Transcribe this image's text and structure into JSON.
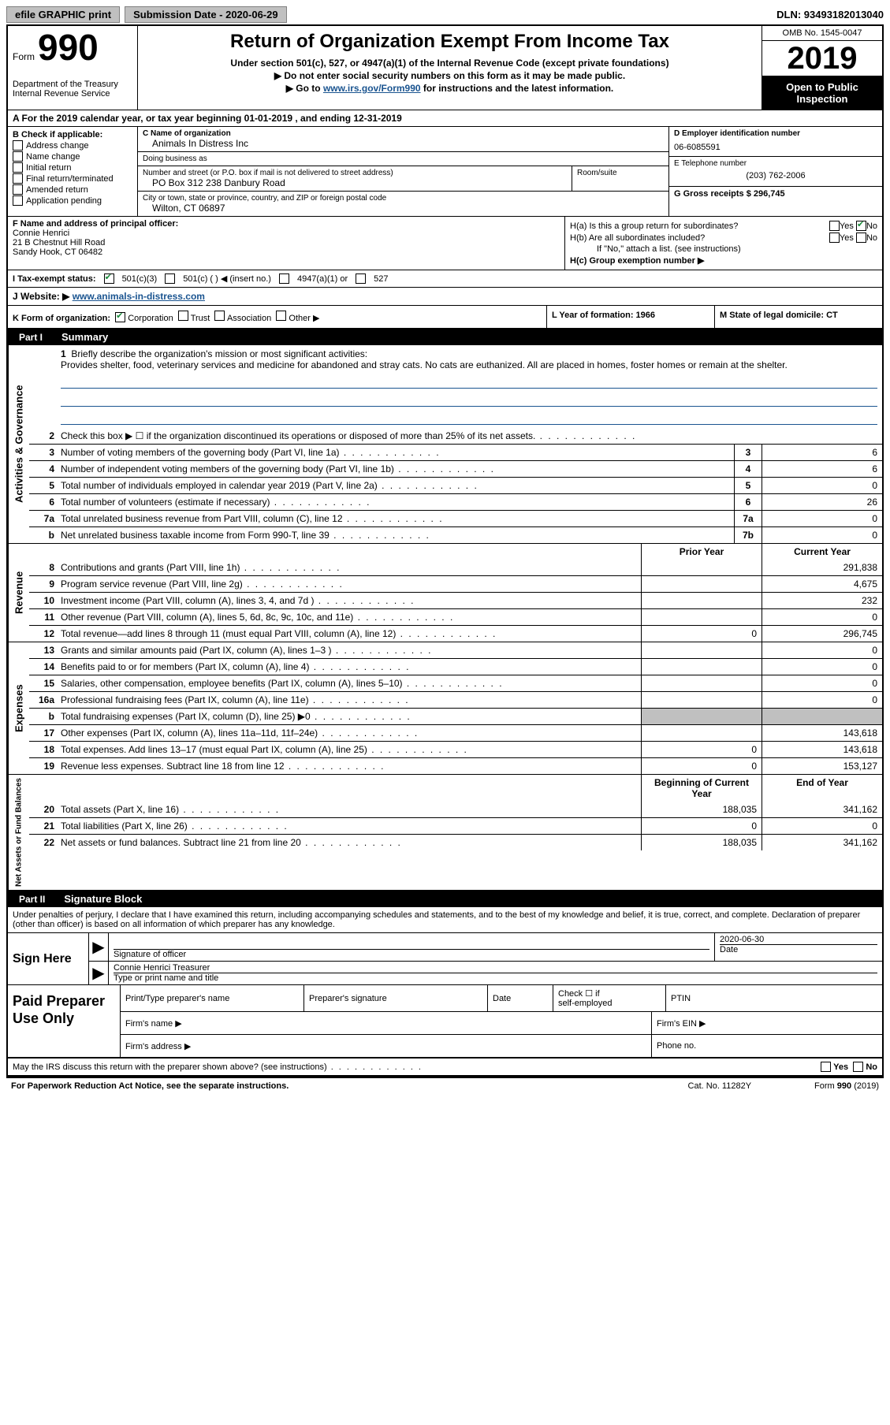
{
  "topbar": {
    "efile": "efile GRAPHIC print",
    "sub_label": "Submission Date - 2020-06-29",
    "dln": "DLN: 93493182013040"
  },
  "header": {
    "form_word": "Form",
    "form_num": "990",
    "dept": "Department of the Treasury\nInternal Revenue Service",
    "title": "Return of Organization Exempt From Income Tax",
    "sub1": "Under section 501(c), 527, or 4947(a)(1) of the Internal Revenue Code (except private foundations)",
    "sub2": "▶ Do not enter social security numbers on this form as it may be made public.",
    "sub3_pre": "▶ Go to ",
    "sub3_link": "www.irs.gov/Form990",
    "sub3_post": " for instructions and the latest information.",
    "omb": "OMB No. 1545-0047",
    "year": "2019",
    "inspection": "Open to Public Inspection"
  },
  "rowA": "A   For the 2019 calendar year, or tax year beginning 01-01-2019    , and ending 12-31-2019",
  "colB": {
    "label": "B Check if applicable:",
    "items": [
      "Address change",
      "Name change",
      "Initial return",
      "Final return/terminated",
      "Amended return",
      "Application pending"
    ]
  },
  "colC": {
    "name_lbl": "C Name of organization",
    "name": "Animals In Distress Inc",
    "dba_lbl": "Doing business as",
    "dba": "",
    "addr_lbl": "Number and street (or P.O. box if mail is not delivered to street address)",
    "room_lbl": "Room/suite",
    "addr": "PO Box 312 238 Danbury Road",
    "city_lbl": "City or town, state or province, country, and ZIP or foreign postal code",
    "city": "Wilton, CT  06897"
  },
  "colD": {
    "ein_lbl": "D Employer identification number",
    "ein": "06-6085591",
    "phone_lbl": "E Telephone number",
    "phone": "(203) 762-2006",
    "gross_lbl": "G Gross receipts $ 296,745"
  },
  "colF": {
    "lbl": "F  Name and address of principal officer:",
    "name": "Connie Henrici",
    "addr1": "21 B Chestnut Hill Road",
    "addr2": "Sandy Hook, CT  06482"
  },
  "colH": {
    "a": "H(a)  Is this a group return for subordinates?",
    "b": "H(b)  Are all subordinates included?",
    "b_note": "If \"No,\" attach a list. (see instructions)",
    "c": "H(c)  Group exemption number ▶"
  },
  "rowI": {
    "lbl": "I   Tax-exempt status:",
    "o1": "501(c)(3)",
    "o2": "501(c) (   ) ◀ (insert no.)",
    "o3": "4947(a)(1) or",
    "o4": "527"
  },
  "rowJ": {
    "lbl": "J   Website: ▶  ",
    "url": "www.animals-in-distress.com"
  },
  "rowK": "K Form of organization:",
  "rowK_opts": [
    "Corporation",
    "Trust",
    "Association",
    "Other ▶"
  ],
  "rowL": "L Year of formation: 1966",
  "rowM": "M State of legal domicile: CT",
  "part1": {
    "tab": "Part I",
    "title": "Summary"
  },
  "mission": {
    "num": "1",
    "lbl": "Briefly describe the organization's mission or most significant activities:",
    "text": "Provides shelter, food, veterinary services and medicine for abandoned and stray cats. No cats are euthanized. All are placed in homes, foster homes or remain at the shelter."
  },
  "gov_lines": [
    {
      "n": "2",
      "d": "Check this box ▶ ☐  if the organization discontinued its operations or disposed of more than 25% of its net assets.",
      "box": "",
      "v": ""
    },
    {
      "n": "3",
      "d": "Number of voting members of the governing body (Part VI, line 1a)",
      "box": "3",
      "v": "6"
    },
    {
      "n": "4",
      "d": "Number of independent voting members of the governing body (Part VI, line 1b)",
      "box": "4",
      "v": "6"
    },
    {
      "n": "5",
      "d": "Total number of individuals employed in calendar year 2019 (Part V, line 2a)",
      "box": "5",
      "v": "0"
    },
    {
      "n": "6",
      "d": "Total number of volunteers (estimate if necessary)",
      "box": "6",
      "v": "26"
    },
    {
      "n": "7a",
      "d": "Total unrelated business revenue from Part VIII, column (C), line 12",
      "box": "7a",
      "v": "0"
    },
    {
      "n": "b",
      "d": "Net unrelated business taxable income from Form 990-T, line 39",
      "box": "7b",
      "v": "0"
    }
  ],
  "rev_hdr": {
    "prior": "Prior Year",
    "curr": "Current Year"
  },
  "rev_lines": [
    {
      "n": "8",
      "d": "Contributions and grants (Part VIII, line 1h)",
      "p": "",
      "c": "291,838"
    },
    {
      "n": "9",
      "d": "Program service revenue (Part VIII, line 2g)",
      "p": "",
      "c": "4,675"
    },
    {
      "n": "10",
      "d": "Investment income (Part VIII, column (A), lines 3, 4, and 7d )",
      "p": "",
      "c": "232"
    },
    {
      "n": "11",
      "d": "Other revenue (Part VIII, column (A), lines 5, 6d, 8c, 9c, 10c, and 11e)",
      "p": "",
      "c": "0"
    },
    {
      "n": "12",
      "d": "Total revenue—add lines 8 through 11 (must equal Part VIII, column (A), line 12)",
      "p": "0",
      "c": "296,745"
    }
  ],
  "exp_lines": [
    {
      "n": "13",
      "d": "Grants and similar amounts paid (Part IX, column (A), lines 1–3 )",
      "p": "",
      "c": "0"
    },
    {
      "n": "14",
      "d": "Benefits paid to or for members (Part IX, column (A), line 4)",
      "p": "",
      "c": "0"
    },
    {
      "n": "15",
      "d": "Salaries, other compensation, employee benefits (Part IX, column (A), lines 5–10)",
      "p": "",
      "c": "0"
    },
    {
      "n": "16a",
      "d": "Professional fundraising fees (Part IX, column (A), line 11e)",
      "p": "",
      "c": "0"
    },
    {
      "n": "b",
      "d": "Total fundraising expenses (Part IX, column (D), line 25) ▶0",
      "p": "SHADE",
      "c": "SHADE"
    },
    {
      "n": "17",
      "d": "Other expenses (Part IX, column (A), lines 11a–11d, 11f–24e)",
      "p": "",
      "c": "143,618"
    },
    {
      "n": "18",
      "d": "Total expenses. Add lines 13–17 (must equal Part IX, column (A), line 25)",
      "p": "0",
      "c": "143,618"
    },
    {
      "n": "19",
      "d": "Revenue less expenses. Subtract line 18 from line 12",
      "p": "0",
      "c": "153,127"
    }
  ],
  "na_hdr": {
    "prior": "Beginning of Current Year",
    "curr": "End of Year"
  },
  "na_lines": [
    {
      "n": "20",
      "d": "Total assets (Part X, line 16)",
      "p": "188,035",
      "c": "341,162"
    },
    {
      "n": "21",
      "d": "Total liabilities (Part X, line 26)",
      "p": "0",
      "c": "0"
    },
    {
      "n": "22",
      "d": "Net assets or fund balances. Subtract line 21 from line 20",
      "p": "188,035",
      "c": "341,162"
    }
  ],
  "part2": {
    "tab": "Part II",
    "title": "Signature Block"
  },
  "sig": {
    "intro": "Under penalties of perjury, I declare that I have examined this return, including accompanying schedules and statements, and to the best of my knowledge and belief, it is true, correct, and complete. Declaration of preparer (other than officer) is based on all information of which preparer has any knowledge.",
    "sign_here": "Sign Here",
    "sig_lbl": "Signature of officer",
    "date_lbl": "Date",
    "date": "2020-06-30",
    "name": "Connie Henrici  Treasurer",
    "name_lbl": "Type or print name and title"
  },
  "prep": {
    "lbl": "Paid Preparer Use Only",
    "c1": "Print/Type preparer's name",
    "c2": "Preparer's signature",
    "c3": "Date",
    "c4a": "Check ☐ if",
    "c4b": "self-employed",
    "c5": "PTIN",
    "firm_name": "Firm's name    ▶",
    "firm_ein": "Firm's EIN ▶",
    "firm_addr": "Firm's address ▶",
    "phone": "Phone no."
  },
  "footer": {
    "discuss": "May the IRS discuss this return with the preparer shown above? (see instructions)",
    "yes": "Yes",
    "no": "No",
    "paperwork": "For Paperwork Reduction Act Notice, see the separate instructions.",
    "cat": "Cat. No. 11282Y",
    "form": "Form 990 (2019)"
  }
}
